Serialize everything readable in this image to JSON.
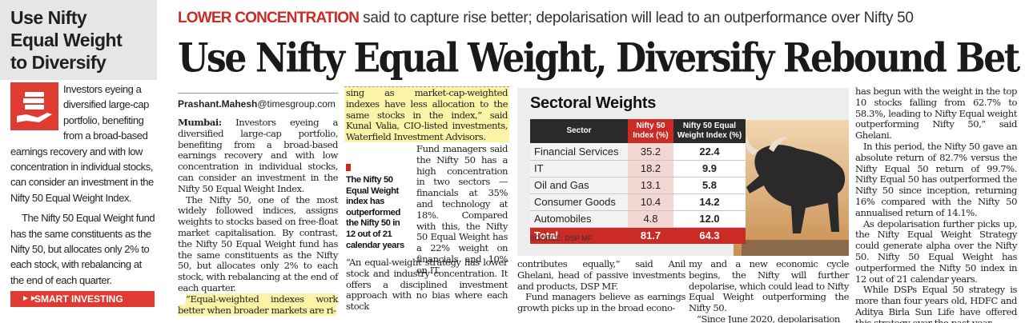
{
  "sidebar": {
    "title_lines": [
      "Use Nifty",
      "Equal Weight",
      "to Diversify"
    ],
    "para1": "Investors eyeing a diversified large-cap portfolio, benefiting from a broad-based earnings recovery and with low concentration in individual stocks, can consider an investment in the Nifty 50 Equal Weight Index.",
    "para2": "The Nifty 50 Equal Weight fund has the same constituents as the Nifty 50, but allocates only 2% to each stock, with rebalancing at the end of each quarter.",
    "tag": "SMART INVESTING",
    "tag_icon": "double-chevron-icon",
    "icon": "hand-with-cash-icon",
    "accent": "#e03b33"
  },
  "kicker": {
    "red": "LOWER CONCENTRATION",
    "rest": " said to capture rise better; depolarisation will lead to an outperformance over Nifty 50"
  },
  "headline": "Use Nifty Equal Weight, Diversify Rebound Bet",
  "byline": {
    "name": "Prashant.Mahesh",
    "domain": "@timesgroup.com"
  },
  "col1": {
    "dateline": "Mumbai:",
    "p1": " Investors eyeing a diversified large-cap portfolio, benefiting from a broad-based earnings recovery and with low concentration in individual stocks, can consider an investment in the Nifty 50 Equal Weight Index.",
    "p2": "The Nifty 50, one of the most widely followed indices, assigns weights to stocks based on free-float market capitalisation. By contrast, the Nifty 50 Equal Weight fund has the same constituents as the Nifty 50, but allocates only 2% to each stock, with rebalancing at the end of each quarter.",
    "p3": "“Equal-weighted indexes work better when broader markets are ri-"
  },
  "col2": {
    "quote": "sing as market-cap-weighted indexes have less allocation to the same stocks in the index,” said Kunal Valia, CIO-listed investments, Waterfield Investment Advisors.",
    "p1": "Fund managers said the Nifty 50 has a high concentration in two sectors — financials at 35% and technology at 18%. Compared with this, the Nifty 50 Equal Weight has a 22% weight on financials and 10% on IT.",
    "p2": "“An equal-weight strategy has lower stock and industry concentration. It offers a disciplined investment approach with no bias where each stock",
    "callout": "The Nifty 50 Equal Weight index has outperformed the Nifty 50 in 12 out of 21 calendar years"
  },
  "col3": {
    "text": "contributes equally,” said Anil Ghelani, head of passive investments and products, DSP MF.",
    "p2": "Fund managers believe as earnings growth picks up in the broad econo-"
  },
  "col4": {
    "text": "my and a new economic cycle begins, the Nifty will further depolarise, which could lead to Nifty Equal Weight outperforming the Nifty 50.",
    "p2": "“Since June 2020, depolarisation"
  },
  "col5": {
    "p1": "has begun with the weight in the top 10 stocks falling from 62.7% to 58.3%, leading to Nifty Equal weight outperforming Nifty 50,” said Ghelani.",
    "p2": "In this period, the Nifty 50 gave an absolute return of 82.7% versus the Nifty Equal 50 return of 99.7%. Nifty Equal 50 has outperformed the Nifty 50 since inception, returning 16% compared with the Nifty 50 annualised return of 14.1%.",
    "p3": "As depolarisation further picks up, the Nifty Equal Weight Strategy could generate alpha over the Nifty 50. Nifty 50 Equal Weight has outperformed the Nifty 50 index in 12 out of 21 calendar years.",
    "p4": "While DSPs Equal 50 strategy is more than four years old, HDFC and Aditya Birla Sun Life have offered this strategy over the past year."
  },
  "chart_data": {
    "type": "table",
    "title": "Sectoral Weights",
    "columns": [
      "Sector",
      "Nifty 50 Index (%)",
      "Nifty 50 Equal Weight Index (%)"
    ],
    "rows": [
      [
        "Financial Services",
        "35.2",
        "22.4"
      ],
      [
        "IT",
        "18.2",
        "9.9"
      ],
      [
        "Oil and Gas",
        "13.1",
        "5.8"
      ],
      [
        "Consumer Goods",
        "10.4",
        "14.2"
      ],
      [
        "Automobiles",
        "4.8",
        "12.0"
      ]
    ],
    "total": [
      "Total",
      "81.7",
      "64.3"
    ],
    "source": "SOURCE: DSP MF",
    "image": "bull-icon"
  }
}
